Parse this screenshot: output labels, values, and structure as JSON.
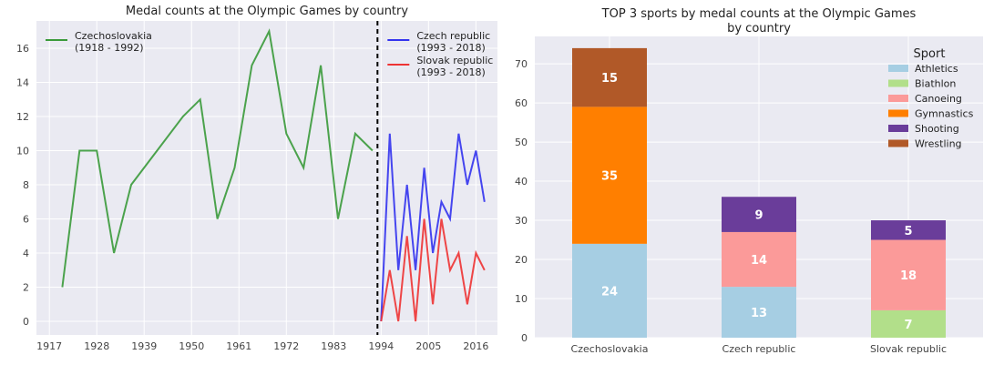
{
  "chart_data": [
    {
      "type": "line",
      "title": "Medal counts at the Olympic Games by country",
      "xlim": [
        1914,
        2021
      ],
      "ylim": [
        -0.8,
        17.6
      ],
      "x_ticks": [
        "1917",
        "1928",
        "1939",
        "1950",
        "1961",
        "1972",
        "1983",
        "1994",
        "2005",
        "2016"
      ],
      "x_tick_values": [
        1917,
        1928,
        1939,
        1950,
        1961,
        1972,
        1983,
        1994,
        2005,
        2016
      ],
      "y_ticks": [
        "0",
        "2",
        "4",
        "6",
        "8",
        "10",
        "12",
        "14",
        "16"
      ],
      "y_tick_values": [
        0,
        2,
        4,
        6,
        8,
        10,
        12,
        14,
        16
      ],
      "divider_x": 1994,
      "grid": true,
      "series": [
        {
          "name": "Czechoslovakia\n(1918 - 1992)",
          "color": "#3a9a3a",
          "x": [
            1920,
            1924,
            1928,
            1932,
            1936,
            1948,
            1952,
            1956,
            1960,
            1964,
            1968,
            1972,
            1976,
            1980,
            1984,
            1988,
            1992
          ],
          "y": [
            2,
            10,
            10,
            4,
            8,
            12,
            13,
            6,
            9,
            15,
            17,
            11,
            9,
            15,
            6,
            11,
            10
          ]
        },
        {
          "name": "Czech republic\n(1993 - 2018)",
          "color": "#3333ee",
          "x": [
            1994,
            1996,
            1998,
            2000,
            2002,
            2004,
            2006,
            2008,
            2010,
            2012,
            2014,
            2016,
            2018
          ],
          "y": [
            0,
            11,
            3,
            8,
            3,
            9,
            4,
            7,
            6,
            11,
            8,
            10,
            7
          ]
        },
        {
          "name": "Slovak republic\n(1993 - 2018)",
          "color": "#ee3333",
          "x": [
            1994,
            1996,
            1998,
            2000,
            2002,
            2004,
            2006,
            2008,
            2010,
            2012,
            2014,
            2016,
            2018
          ],
          "y": [
            0,
            3,
            0,
            5,
            0,
            6,
            1,
            6,
            3,
            4,
            1,
            4,
            3
          ]
        }
      ]
    },
    {
      "type": "bar",
      "stacked": true,
      "title": "TOP 3 sports by medal counts at the Olympic Games\nby country",
      "categories": [
        "Czechoslovakia",
        "Czech republic",
        "Slovak republic"
      ],
      "ylim": [
        0,
        77
      ],
      "y_ticks": [
        "0",
        "10",
        "20",
        "30",
        "40",
        "50",
        "60",
        "70"
      ],
      "y_tick_values": [
        0,
        10,
        20,
        30,
        40,
        50,
        60,
        70
      ],
      "legend_title": "Sport",
      "legend_position": "top-right",
      "grid": true,
      "series": [
        {
          "name": "Athletics",
          "color": "#a6cee3",
          "values": [
            24,
            13,
            0
          ]
        },
        {
          "name": "Biathlon",
          "color": "#b2df8a",
          "values": [
            0,
            0,
            7
          ]
        },
        {
          "name": "Canoeing",
          "color": "#fb9a99",
          "values": [
            0,
            14,
            18
          ]
        },
        {
          "name": "Gymnastics",
          "color": "#ff7f00",
          "values": [
            35,
            0,
            0
          ]
        },
        {
          "name": "Shooting",
          "color": "#6a3d9a",
          "values": [
            0,
            9,
            5
          ]
        },
        {
          "name": "Wrestling",
          "color": "#b15928",
          "values": [
            15,
            0,
            0
          ]
        }
      ]
    }
  ]
}
